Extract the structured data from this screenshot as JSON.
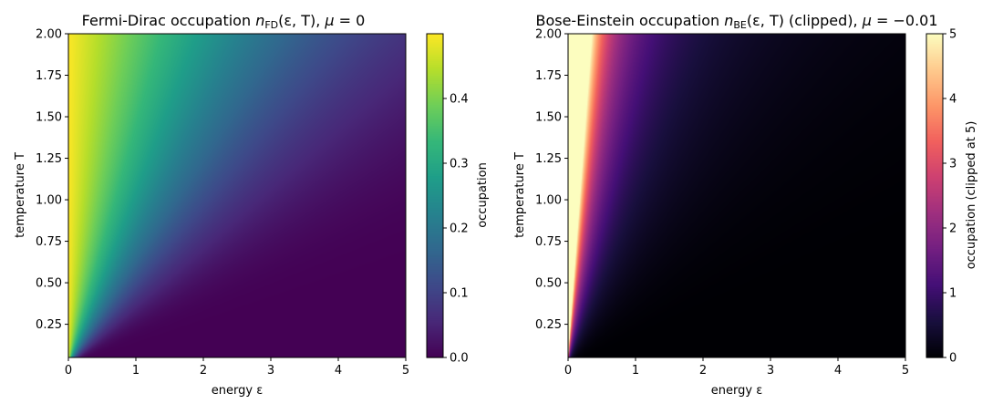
{
  "chart_data": [
    {
      "type": "heatmap",
      "title": "Fermi-Dirac occupation n_FD(ε, T), μ = 0",
      "title_parts": {
        "pre": "Fermi-Dirac occupation ",
        "sym": "n",
        "sub": "FD",
        "args": "(ε, T), ",
        "mu": "μ",
        "eq": " = 0"
      },
      "xlabel": "energy ε",
      "ylabel": "temperature T",
      "xlim": [
        0,
        5
      ],
      "ylim": [
        0.05,
        2.0
      ],
      "xticks": [
        "0",
        "1",
        "2",
        "3",
        "4",
        "5"
      ],
      "xtick_values": [
        0,
        1,
        2,
        3,
        4,
        5
      ],
      "yticks": [
        "0.25",
        "0.50",
        "0.75",
        "1.00",
        "1.25",
        "1.50",
        "1.75",
        "2.00"
      ],
      "ytick_values": [
        0.25,
        0.5,
        0.75,
        1.0,
        1.25,
        1.5,
        1.75,
        2.0
      ],
      "mu": 0,
      "function": "1 / (exp((ε - μ)/T) + 1)",
      "clip": null,
      "colormap": "viridis",
      "colorbar": {
        "label": "occupation",
        "range": [
          0,
          0.5
        ],
        "ticks": [
          "0.0",
          "0.1",
          "0.2",
          "0.3",
          "0.4"
        ],
        "tick_values": [
          0,
          0.1,
          0.2,
          0.3,
          0.4
        ]
      }
    },
    {
      "type": "heatmap",
      "title": "Bose-Einstein occupation n_BE(ε, T) (clipped), μ = −0.01",
      "title_parts": {
        "pre": "Bose-Einstein occupation ",
        "sym": "n",
        "sub": "BE",
        "args": "(ε, T) (clipped), ",
        "mu": "μ",
        "eq": " = −0.01"
      },
      "xlabel": "energy ε",
      "ylabel": "temperature T",
      "xlim": [
        0,
        5
      ],
      "ylim": [
        0.05,
        2.0
      ],
      "xticks": [
        "0",
        "1",
        "2",
        "3",
        "4",
        "5"
      ],
      "xtick_values": [
        0,
        1,
        2,
        3,
        4,
        5
      ],
      "yticks": [
        "0.25",
        "0.50",
        "0.75",
        "1.00",
        "1.25",
        "1.50",
        "1.75",
        "2.00"
      ],
      "ytick_values": [
        0.25,
        0.5,
        0.75,
        1.0,
        1.25,
        1.5,
        1.75,
        2.0
      ],
      "mu": -0.01,
      "function": "1 / (exp((ε - μ)/T) - 1)",
      "clip": 5,
      "colormap": "magma",
      "colorbar": {
        "label": "occupation (clipped at 5)",
        "range": [
          0,
          5
        ],
        "ticks": [
          "0",
          "1",
          "2",
          "3",
          "4",
          "5"
        ],
        "tick_values": [
          0,
          1,
          2,
          3,
          4,
          5
        ]
      }
    }
  ],
  "colormaps": {
    "viridis": [
      "#440154",
      "#482878",
      "#3e4989",
      "#31688e",
      "#26828e",
      "#1f9e89",
      "#35b779",
      "#6ece58",
      "#b5de2b",
      "#fde725"
    ],
    "magma": [
      "#000004",
      "#180f3d",
      "#440f76",
      "#721f81",
      "#9e2f7f",
      "#cd4071",
      "#f1605d",
      "#fd9668",
      "#feca8d",
      "#fcfdbf"
    ]
  }
}
